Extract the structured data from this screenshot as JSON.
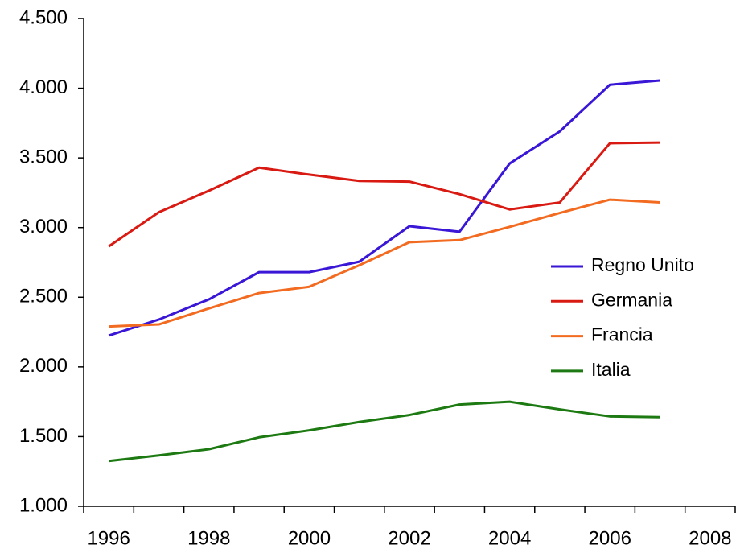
{
  "chart_data": {
    "type": "line",
    "categories": [
      "1996",
      null,
      "1998",
      null,
      "2000",
      null,
      "2002",
      null,
      "2004",
      null,
      "2006",
      null,
      "2008"
    ],
    "series": [
      {
        "name": "Regno Unito",
        "color": "#3a16d6",
        "values": [
          2225,
          2340,
          2485,
          2680,
          2680,
          2755,
          3010,
          2970,
          3460,
          3690,
          4025,
          4055,
          null
        ]
      },
      {
        "name": "Germania",
        "color": "#d91a12",
        "values": [
          2865,
          3110,
          3265,
          3430,
          3380,
          3335,
          3330,
          3240,
          3130,
          3180,
          3605,
          3610,
          null
        ]
      },
      {
        "name": "Francia",
        "color": "#f26b21",
        "values": [
          2290,
          2305,
          2420,
          2530,
          2575,
          2730,
          2895,
          2910,
          3005,
          3105,
          3200,
          3180,
          null
        ]
      },
      {
        "name": "Italia",
        "color": "#1d7a12",
        "values": [
          1325,
          1365,
          1410,
          1495,
          1545,
          1605,
          1655,
          1730,
          1750,
          1695,
          1645,
          1640,
          null
        ]
      }
    ],
    "ylim": [
      1000,
      4500
    ],
    "yticks": [
      {
        "value": 1000,
        "label": "1.000"
      },
      {
        "value": 1500,
        "label": "1.500"
      },
      {
        "value": 2000,
        "label": "2.000"
      },
      {
        "value": 2500,
        "label": "2.500"
      },
      {
        "value": 3000,
        "label": "3.000"
      },
      {
        "value": 3500,
        "label": "3.500"
      },
      {
        "value": 4000,
        "label": "4.000"
      },
      {
        "value": 4500,
        "label": "4.500"
      }
    ],
    "grid": false,
    "legend": "right"
  }
}
